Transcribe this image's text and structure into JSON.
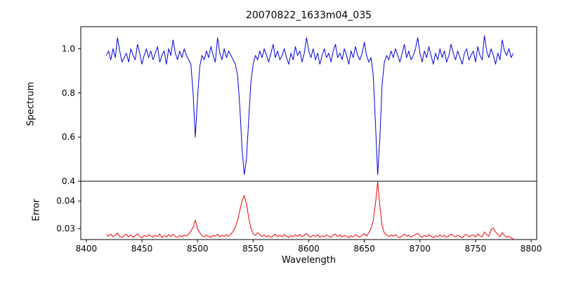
{
  "title": "20070822_1633m04_035",
  "chart_data": {
    "type": "line",
    "title": "20070822_1633m04_035",
    "xlabel": "Wavelength",
    "grid": false,
    "legend": "none",
    "x_start": 8418,
    "x_step": 2,
    "xlim": [
      8395,
      8805
    ],
    "xticks": [
      8400,
      8450,
      8500,
      8550,
      8600,
      8650,
      8700,
      8750,
      8800
    ],
    "xtick_labels": [
      "8400",
      "8450",
      "8500",
      "8550",
      "8600",
      "8650",
      "8700",
      "8750",
      "8800"
    ],
    "absorption_line_centers": [
      8498,
      8542,
      8662
    ],
    "panels": [
      {
        "name": "spectrum",
        "ylabel": "Spectrum",
        "color": "#0000dd",
        "ylim": [
          0.4,
          1.1
        ],
        "yticks": [
          1.0,
          0.8,
          0.6,
          0.4
        ],
        "ytick_labels": [
          "1.0",
          "0.8",
          "0.6",
          "0.4"
        ],
        "values": [
          0.97,
          0.99,
          0.95,
          1.0,
          0.96,
          1.05,
          0.99,
          0.94,
          0.96,
          0.98,
          0.94,
          1.0,
          0.97,
          0.95,
          1.02,
          0.98,
          0.93,
          0.97,
          1.0,
          0.96,
          0.99,
          0.95,
          0.98,
          1.01,
          0.94,
          0.97,
          0.99,
          0.93,
          1.0,
          0.97,
          1.04,
          0.98,
          0.95,
          0.99,
          0.96,
          1.0,
          0.97,
          0.95,
          0.93,
          0.8,
          0.6,
          0.78,
          0.92,
          0.97,
          0.95,
          0.99,
          0.96,
          1.01,
          0.97,
          0.94,
          1.05,
          0.98,
          0.95,
          1.0,
          0.96,
          0.99,
          0.97,
          0.95,
          0.93,
          0.88,
          0.74,
          0.55,
          0.43,
          0.5,
          0.68,
          0.85,
          0.93,
          0.97,
          0.95,
          0.99,
          0.96,
          1.0,
          0.97,
          0.94,
          0.98,
          1.02,
          0.96,
          0.99,
          0.95,
          0.97,
          1.0,
          0.96,
          0.93,
          0.98,
          0.95,
          1.01,
          0.97,
          0.99,
          0.94,
          0.98,
          1.05,
          0.99,
          0.96,
          1.0,
          0.95,
          0.98,
          0.93,
          0.97,
          1.0,
          0.96,
          0.98,
          0.94,
          0.99,
          1.02,
          0.96,
          0.98,
          0.95,
          1.0,
          0.97,
          0.93,
          0.99,
          0.96,
          1.01,
          0.97,
          0.95,
          0.98,
          1.03,
          0.97,
          0.94,
          0.96,
          0.88,
          0.66,
          0.43,
          0.6,
          0.84,
          0.94,
          0.97,
          0.95,
          0.99,
          0.96,
          1.0,
          0.97,
          0.94,
          0.98,
          1.02,
          0.96,
          0.99,
          0.95,
          0.97,
          1.0,
          1.05,
          0.98,
          0.94,
          0.99,
          0.96,
          1.01,
          0.97,
          0.93,
          0.98,
          0.95,
          1.0,
          0.96,
          0.99,
          0.94,
          0.97,
          1.02,
          0.98,
          0.95,
          0.99,
          0.96,
          0.93,
          0.98,
          1.0,
          0.95,
          0.97,
          0.99,
          0.94,
          1.01,
          0.97,
          0.95,
          1.06,
          0.99,
          0.96,
          1.0,
          0.97,
          0.93,
          0.98,
          0.95,
          1.04,
          0.99,
          0.97,
          1.0,
          0.96,
          0.98
        ]
      },
      {
        "name": "error",
        "ylabel": "Error",
        "color": "#ee0000",
        "ylim": [
          0.026,
          0.0472
        ],
        "yticks": [
          0.04,
          0.03
        ],
        "ytick_labels": [
          "0.04",
          "0.03"
        ],
        "values": [
          0.0278,
          0.0272,
          0.028,
          0.027,
          0.0276,
          0.0284,
          0.0271,
          0.0268,
          0.0275,
          0.0279,
          0.027,
          0.0277,
          0.0268,
          0.0274,
          0.0281,
          0.0272,
          0.0266,
          0.0275,
          0.027,
          0.0278,
          0.0273,
          0.0269,
          0.0276,
          0.0271,
          0.028,
          0.0267,
          0.0274,
          0.027,
          0.0277,
          0.0272,
          0.0279,
          0.0271,
          0.0268,
          0.0275,
          0.027,
          0.0277,
          0.0272,
          0.028,
          0.029,
          0.0305,
          0.033,
          0.03,
          0.0285,
          0.0274,
          0.027,
          0.0277,
          0.0271,
          0.0268,
          0.0275,
          0.0272,
          0.028,
          0.027,
          0.0276,
          0.0271,
          0.0278,
          0.0272,
          0.028,
          0.029,
          0.0305,
          0.033,
          0.0365,
          0.04,
          0.042,
          0.039,
          0.034,
          0.03,
          0.0282,
          0.0275,
          0.0285,
          0.0278,
          0.0271,
          0.0277,
          0.027,
          0.0275,
          0.0268,
          0.0274,
          0.0279,
          0.0271,
          0.0276,
          0.027,
          0.0278,
          0.0272,
          0.0267,
          0.0275,
          0.027,
          0.0277,
          0.0272,
          0.0279,
          0.027,
          0.0275,
          0.0282,
          0.0273,
          0.0269,
          0.0276,
          0.0271,
          0.0278,
          0.0268,
          0.0274,
          0.027,
          0.0277,
          0.0272,
          0.0268,
          0.0276,
          0.028,
          0.0271,
          0.0277,
          0.0269,
          0.0275,
          0.0272,
          0.0267,
          0.0274,
          0.027,
          0.0278,
          0.0272,
          0.0269,
          0.0276,
          0.0281,
          0.0273,
          0.0285,
          0.03,
          0.033,
          0.039,
          0.047,
          0.038,
          0.031,
          0.0284,
          0.0276,
          0.0271,
          0.0277,
          0.0272,
          0.0278,
          0.027,
          0.0267,
          0.0274,
          0.028,
          0.0272,
          0.0276,
          0.0269,
          0.0274,
          0.0278,
          0.0283,
          0.0273,
          0.0268,
          0.0275,
          0.0271,
          0.0278,
          0.0272,
          0.0266,
          0.0274,
          0.027,
          0.0277,
          0.0271,
          0.0276,
          0.0268,
          0.0273,
          0.028,
          0.0274,
          0.027,
          0.0276,
          0.0271,
          0.0267,
          0.0275,
          0.0278,
          0.027,
          0.0274,
          0.0277,
          0.0269,
          0.028,
          0.0273,
          0.027,
          0.0288,
          0.0278,
          0.0272,
          0.0296,
          0.0302,
          0.0288,
          0.0278,
          0.027,
          0.0285,
          0.0275,
          0.0268,
          0.0272,
          0.0266,
          0.0262
        ]
      }
    ]
  }
}
